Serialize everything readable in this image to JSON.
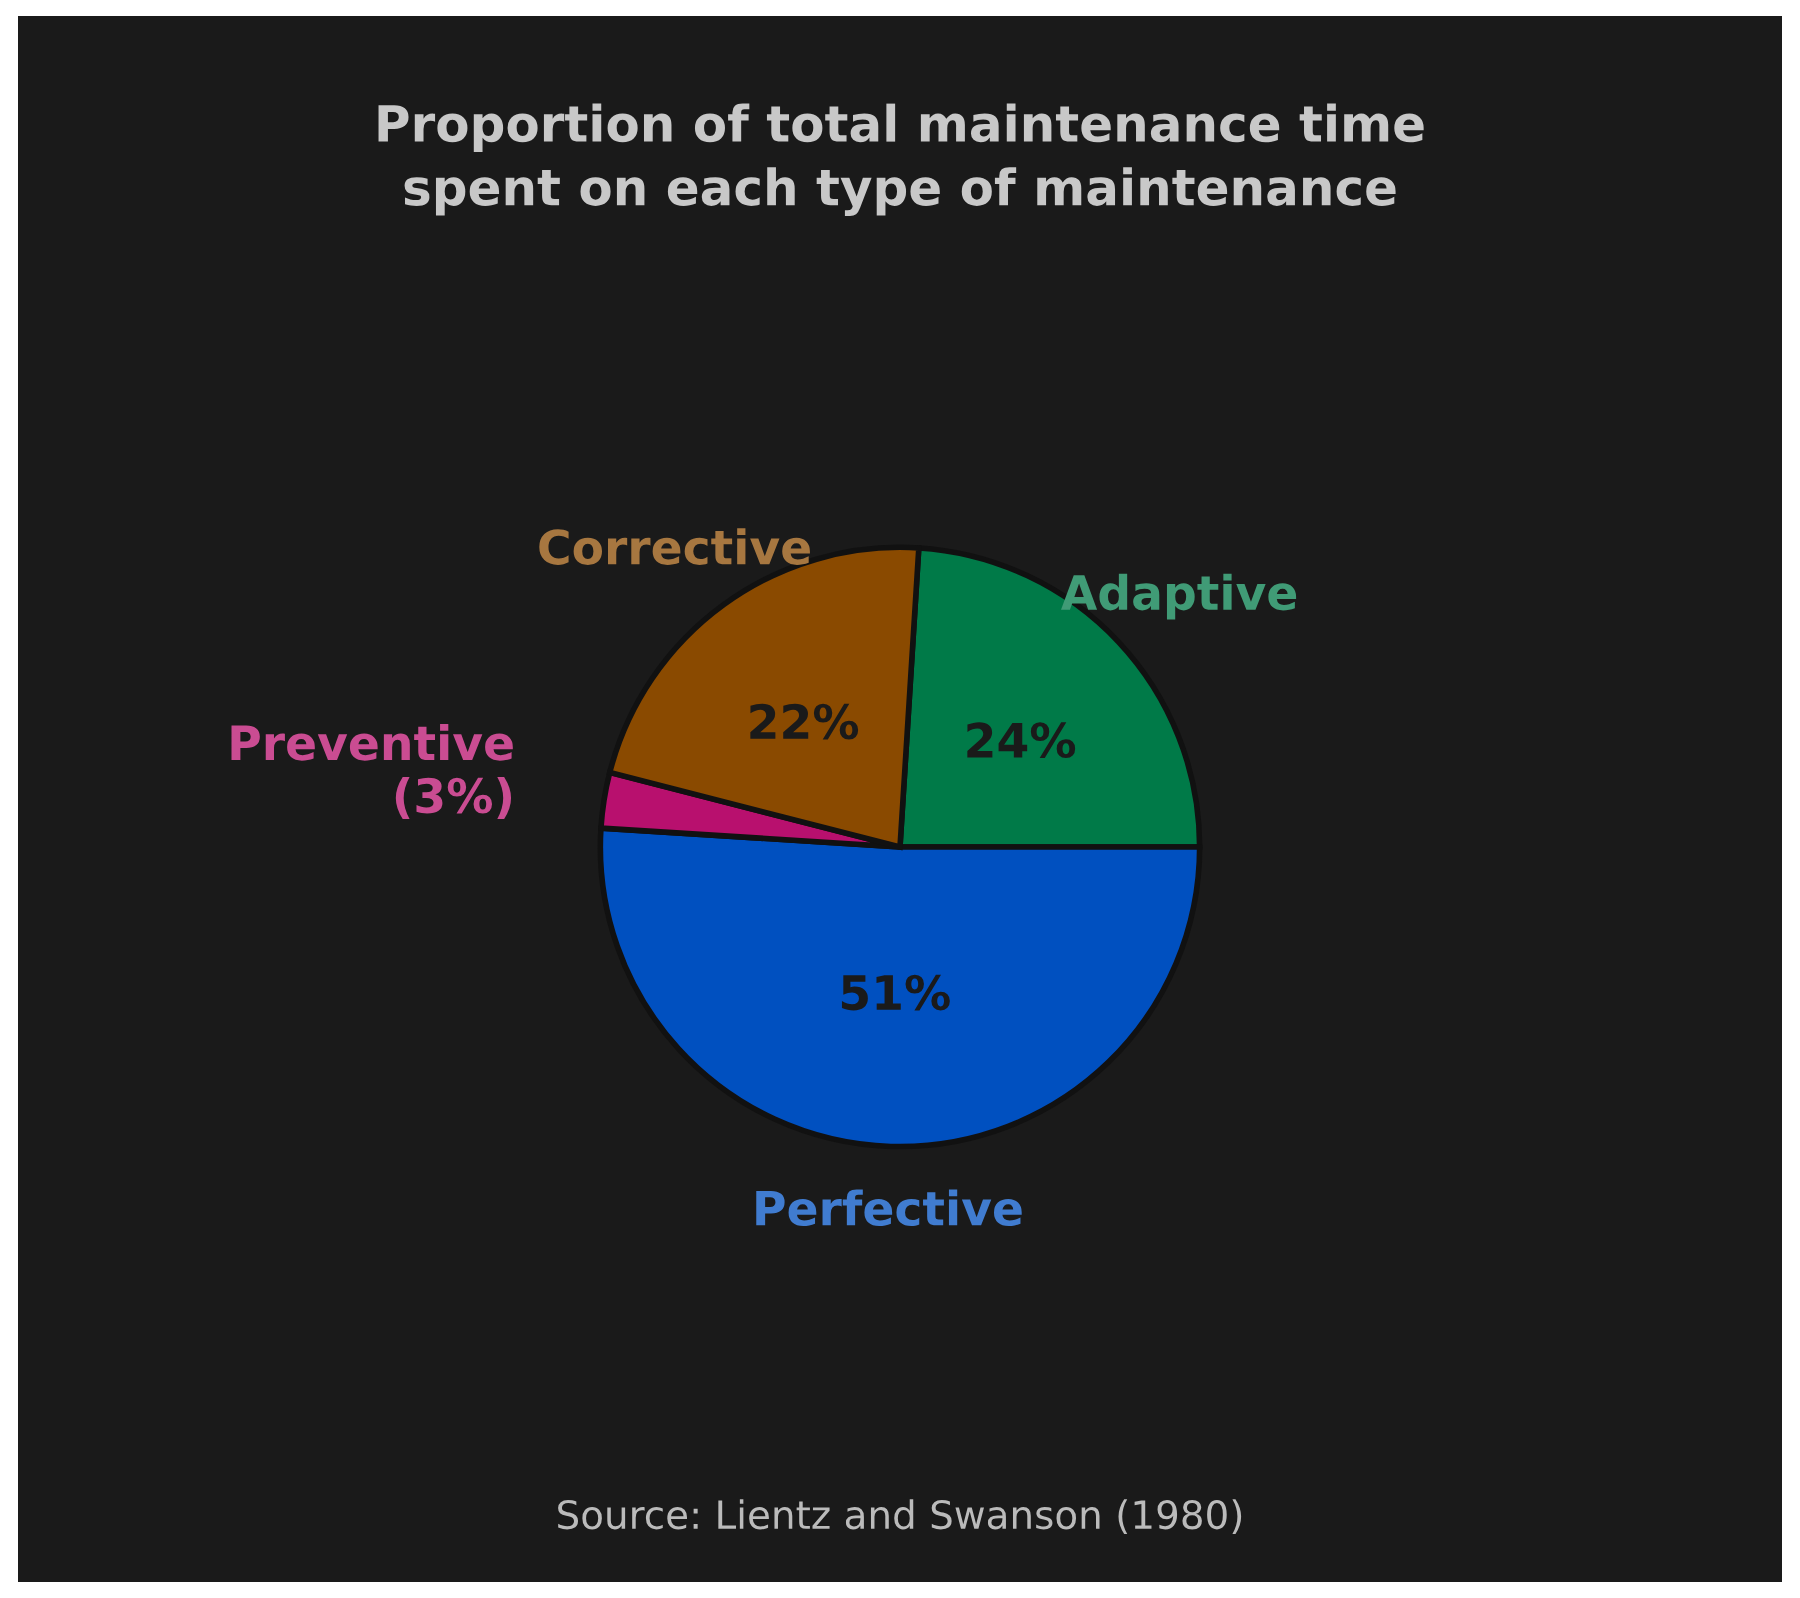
{
  "chart_data": {
    "type": "pie",
    "title": "Proportion of total maintenance time\nspent on each type of maintenance",
    "categories": [
      "Adaptive",
      "Perfective",
      "Preventive",
      "Corrective"
    ],
    "values": [
      24,
      51,
      3,
      22
    ],
    "colors": [
      "#007a48",
      "#0050c0",
      "#b8106e",
      "#8a4a00"
    ],
    "value_labels": [
      "24%",
      "51%",
      "(3%)",
      "22%"
    ],
    "annotations": [
      "Source: Lientz and Swanson (1980)"
    ]
  }
}
